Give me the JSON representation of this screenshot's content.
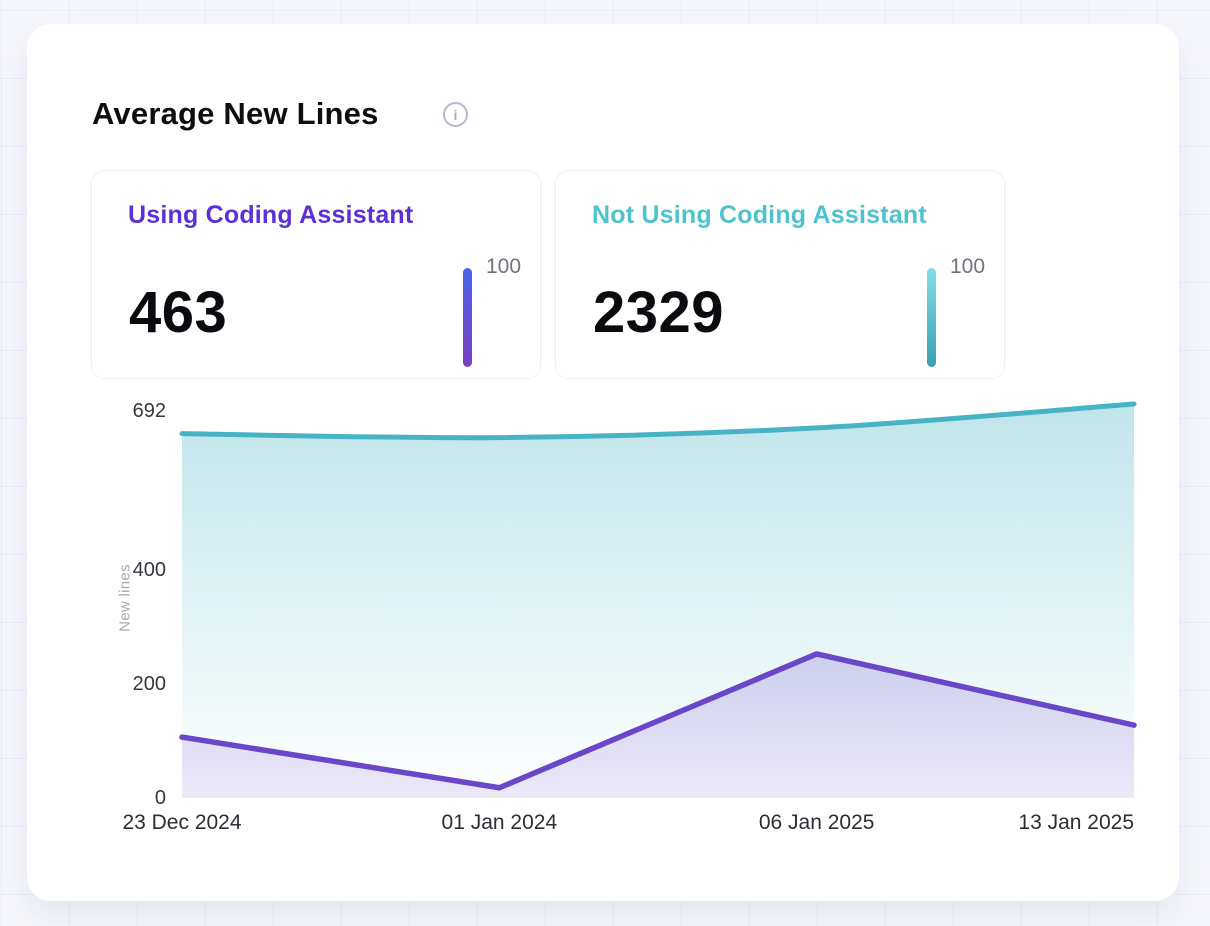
{
  "header": {
    "title": "Average New Lines",
    "info_glyph": "i"
  },
  "stat_cards": [
    {
      "label": "Using Coding Assistant",
      "value": "463",
      "scale_max_label": "100",
      "accent_color": "#5E2FD9",
      "bar_gradient_top": "#4A63E8",
      "bar_gradient_bottom": "#7A3FC0"
    },
    {
      "label": "Not Using Coding Assistant",
      "value": "2329",
      "scale_max_label": "100",
      "accent_color": "#4FC3CD",
      "bar_gradient_top": "#85DEE6",
      "bar_gradient_bottom": "#379FAF"
    }
  ],
  "chart_data": {
    "type": "area",
    "title": "Average New Lines",
    "categories": [
      "23 Dec 2024",
      "01 Jan 2024",
      "06 Jan 2025",
      "13 Jan 2025"
    ],
    "series": [
      {
        "name": "Not Using Coding Assistant",
        "color": "#47B4C5",
        "smooth": true,
        "values": [
          640,
          633,
          650,
          692
        ]
      },
      {
        "name": "Using Coding Assistant",
        "color": "#6A46C8",
        "smooth": false,
        "values": [
          107,
          18,
          253,
          128
        ]
      }
    ],
    "xlabel": "",
    "ylabel": "New lines",
    "ylim": [
      0,
      692
    ],
    "yticks": [
      0,
      200,
      400,
      692
    ],
    "grid": false,
    "legend": "none"
  }
}
